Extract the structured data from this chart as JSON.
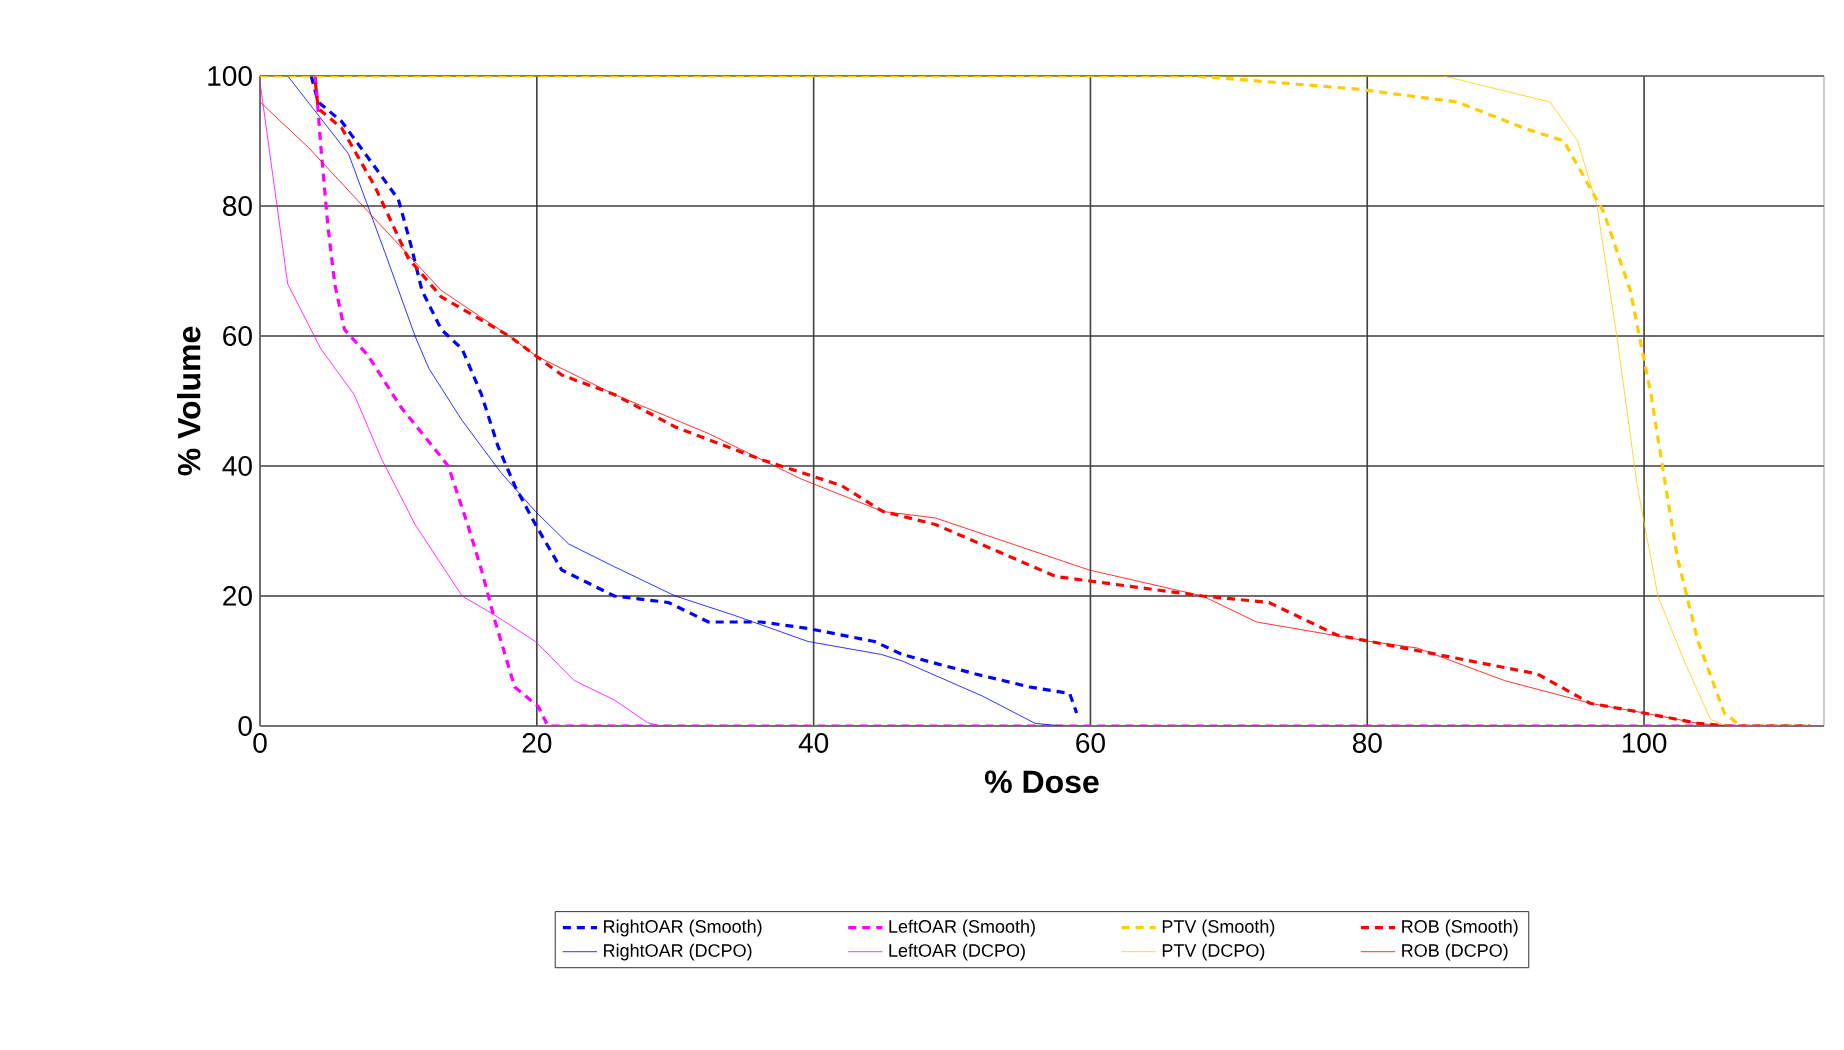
{
  "chart_data": {
    "type": "line",
    "xlabel": "% Dose",
    "ylabel": "% Volume",
    "xlim": [
      0,
      113
    ],
    "ylim": [
      0,
      100
    ],
    "xticks": [
      0,
      20,
      40,
      60,
      80,
      100
    ],
    "yticks": [
      0,
      20,
      40,
      60,
      80,
      100
    ],
    "grid": true,
    "legend": "bottom",
    "series": [
      {
        "name": "RightOAR (Smooth)",
        "color": "#0000ff",
        "line_style": "dashed",
        "x": [
          3.7,
          4.2,
          5.9,
          8.3,
          10,
          10.9,
          11.7,
          13.1,
          14.6,
          16,
          17.2,
          18.4,
          19.9,
          21.8,
          25.6,
          29.5,
          32.4,
          36.2,
          39.6,
          44.4,
          46.4,
          51.7,
          55.6,
          58.5,
          59
        ],
        "values": [
          100,
          96,
          93,
          86,
          81,
          74,
          67,
          61,
          58,
          51,
          43,
          37,
          31,
          24,
          20,
          19,
          16,
          16,
          15,
          13,
          11,
          8,
          6,
          5,
          2
        ]
      },
      {
        "name": "LeftOAR (Smooth)",
        "color": "#ff00ff",
        "line_style": "dashed",
        "x": [
          4,
          4.4,
          4.9,
          5.4,
          6.1,
          7.8,
          10.2,
          12.1,
          13.6,
          15,
          16,
          17,
          18.4,
          20.1,
          20.8,
          40,
          60,
          80,
          100,
          112
        ],
        "values": [
          100,
          89,
          77,
          68,
          61,
          57,
          49,
          44,
          40,
          31,
          24,
          16,
          6,
          3,
          0,
          0,
          0,
          0,
          0,
          0
        ]
      },
      {
        "name": "PTV (Smooth)",
        "color": "#ffcc00",
        "line_style": "dashed",
        "x": [
          0,
          67.6,
          79.2,
          86.5,
          91.3,
          94.2,
          97.1,
          99,
          100.5,
          101.4,
          102.4,
          103.9,
          105.8,
          107,
          112
        ],
        "values": [
          100,
          100,
          98,
          96,
          92,
          90,
          79,
          67,
          51,
          39,
          26,
          13,
          2,
          0,
          0
        ]
      },
      {
        "name": "ROB (Smooth)",
        "color": "#ff0000",
        "line_style": "dashed",
        "x": [
          4,
          4.2,
          5.9,
          8.3,
          10.7,
          13.1,
          18,
          19.9,
          21.8,
          25.6,
          30,
          36.2,
          42,
          45,
          48.8,
          57.5,
          68.1,
          72.9,
          77.8,
          92.3,
          96.1,
          100,
          103.9,
          106,
          112
        ],
        "values": [
          99,
          95,
          92,
          83,
          72,
          66,
          60,
          57,
          54,
          51,
          46,
          41,
          37,
          33,
          31,
          23,
          20,
          19,
          14,
          8,
          3.5,
          2,
          0.4,
          0,
          0
        ]
      },
      {
        "name": "RightOAR (DCPO)",
        "color": "#0000ff",
        "line_style": "solid",
        "x": [
          2,
          6.4,
          9,
          11.2,
          12.2,
          14.6,
          17.4,
          19.9,
          22.3,
          25.6,
          30,
          34.3,
          39.6,
          44.9,
          46.4,
          52.2,
          56,
          58
        ],
        "values": [
          100,
          88,
          73,
          60,
          55,
          47,
          39,
          33,
          28,
          24.5,
          20,
          17,
          13,
          11,
          10,
          4.6,
          0.4,
          0
        ]
      },
      {
        "name": "LeftOAR (DCPO)",
        "color": "#ff00ff",
        "line_style": "solid",
        "x": [
          0,
          1.1,
          2,
          4.4,
          6.8,
          8.8,
          11.2,
          14.6,
          17,
          19.9,
          22.7,
          25.6,
          28,
          29,
          40,
          60,
          80,
          100,
          112
        ],
        "values": [
          99,
          82,
          68,
          58,
          51,
          41,
          31,
          20,
          17,
          13,
          7,
          4,
          0.5,
          0,
          0,
          0,
          0,
          0,
          0
        ]
      },
      {
        "name": "PTV (DCPO)",
        "color": "#ffcc00",
        "line_style": "solid",
        "x": [
          0,
          85.5,
          93.2,
          95.2,
          96.6,
          98.1,
          99.5,
          101,
          102.9,
          104.8,
          106,
          112
        ],
        "values": [
          100,
          100,
          96,
          90,
          80,
          59,
          37,
          20,
          10,
          1,
          0,
          0
        ]
      },
      {
        "name": "ROB (DCPO)",
        "color": "#ff0000",
        "line_style": "solid",
        "x": [
          0,
          3.5,
          8.3,
          13.1,
          18,
          19.9,
          25.6,
          32.4,
          39.1,
          45,
          48.8,
          59.9,
          68.1,
          72,
          80.2,
          83.6,
          89.9,
          96.1,
          100,
          103.9,
          106,
          112
        ],
        "values": [
          96,
          89,
          78,
          67,
          60,
          57,
          51,
          45,
          38,
          33,
          32,
          24,
          20,
          16,
          13,
          12,
          7,
          3.5,
          2,
          0.4,
          0,
          0
        ]
      }
    ]
  }
}
